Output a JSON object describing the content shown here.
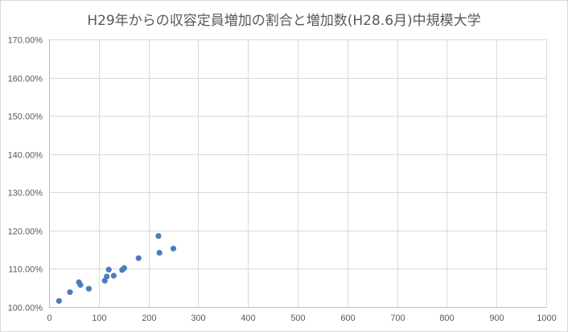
{
  "chart_data": {
    "type": "scatter",
    "title": "H29年からの収容定員増加の割合と増加数(H28.6月)中規模大学",
    "xlabel": "",
    "ylabel": "",
    "xlim": [
      0,
      1000
    ],
    "ylim": [
      1.0,
      1.7
    ],
    "x_ticks": [
      0,
      100,
      200,
      300,
      400,
      500,
      600,
      700,
      800,
      900,
      1000
    ],
    "y_ticks": [
      1.0,
      1.1,
      1.2,
      1.3,
      1.4,
      1.5,
      1.6,
      1.7
    ],
    "x_tick_labels": [
      "0",
      "100",
      "200",
      "300",
      "400",
      "500",
      "600",
      "700",
      "800",
      "900",
      "1000"
    ],
    "y_tick_labels": [
      "100.00%",
      "110.00%",
      "120.00%",
      "130.00%",
      "140.00%",
      "150.00%",
      "160.00%",
      "170.00%"
    ],
    "grid": true,
    "legend": "none",
    "marker_color": "#4a7ebb",
    "points": [
      {
        "x": 20,
        "y": 1.016
      },
      {
        "x": 42,
        "y": 1.039
      },
      {
        "x": 60,
        "y": 1.065
      },
      {
        "x": 63,
        "y": 1.058
      },
      {
        "x": 80,
        "y": 1.048
      },
      {
        "x": 112,
        "y": 1.069
      },
      {
        "x": 116,
        "y": 1.08
      },
      {
        "x": 120,
        "y": 1.098
      },
      {
        "x": 130,
        "y": 1.082
      },
      {
        "x": 147,
        "y": 1.097
      },
      {
        "x": 151,
        "y": 1.102
      },
      {
        "x": 180,
        "y": 1.128
      },
      {
        "x": 220,
        "y": 1.186
      },
      {
        "x": 222,
        "y": 1.142
      },
      {
        "x": 250,
        "y": 1.153
      }
    ]
  }
}
